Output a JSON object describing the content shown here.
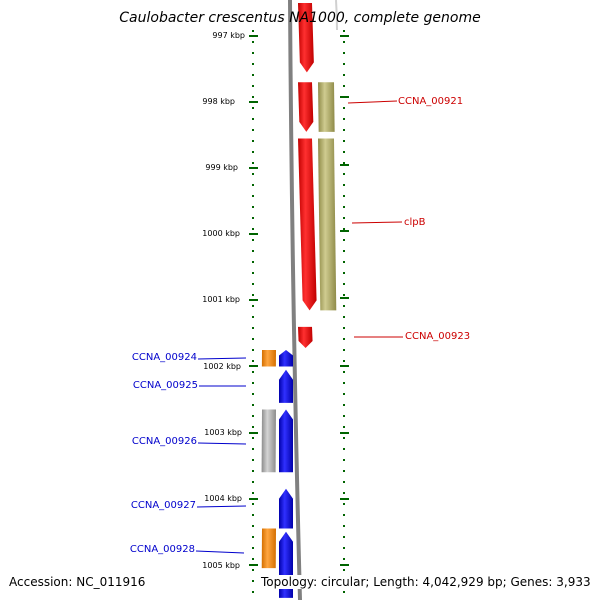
{
  "title": "Caulobacter crescentus NA1000, complete genome",
  "footer": {
    "accession": "Accession: NC_011916",
    "topology": "Topology: circular; Length: 4,042,929 bp; Genes: 3,933"
  },
  "colors": {
    "backbone": "#808080",
    "ticks": "#006400",
    "label_right": "#cc0000",
    "label_left": "#0000cc",
    "red": "#ff0000",
    "olive": "#b8b46c",
    "blue": "#0000ff",
    "orange": "#ff8c00",
    "grey": "#b8b8b8"
  },
  "kbp_ticks": [
    "997 kbp",
    "998 kbp",
    "999 kbp",
    "1000 kbp",
    "1001 kbp",
    "1002 kbp",
    "1003 kbp",
    "1004 kbp",
    "1005 kbp"
  ],
  "gene_labels_right": [
    "CCNA_00921",
    "clpB",
    "CCNA_00923"
  ],
  "gene_labels_left": [
    "CCNA_00924",
    "CCNA_00925",
    "CCNA_00926",
    "CCNA_00927",
    "CCNA_00928"
  ],
  "features": [
    {
      "track": "inner_plus",
      "color": "red",
      "start_kbp": 996.5,
      "end_kbp": 997.55,
      "arrow": true
    },
    {
      "track": "inner_plus",
      "color": "red",
      "start_kbp": 997.7,
      "end_kbp": 998.45,
      "arrow": true
    },
    {
      "track": "inner_plus",
      "color": "red",
      "start_kbp": 998.55,
      "end_kbp": 1001.15,
      "arrow": true
    },
    {
      "track": "inner_plus",
      "color": "red",
      "start_kbp": 1001.4,
      "end_kbp": 1001.72,
      "arrow": true
    },
    {
      "track": "outer_plus",
      "color": "olive",
      "start_kbp": 997.7,
      "end_kbp": 998.45,
      "arrow": false
    },
    {
      "track": "outer_plus",
      "color": "olive",
      "start_kbp": 998.55,
      "end_kbp": 1001.15,
      "arrow": false
    },
    {
      "track": "inner_minus",
      "color": "blue",
      "start_kbp": 1001.75,
      "end_kbp": 1002.0,
      "arrow": true
    },
    {
      "track": "inner_minus",
      "color": "blue",
      "start_kbp": 1002.05,
      "end_kbp": 1002.55,
      "arrow": true
    },
    {
      "track": "inner_minus",
      "color": "blue",
      "start_kbp": 1002.65,
      "end_kbp": 1003.6,
      "arrow": true
    },
    {
      "track": "inner_minus",
      "color": "blue",
      "start_kbp": 1003.85,
      "end_kbp": 1004.45,
      "arrow": true
    },
    {
      "track": "inner_minus",
      "color": "blue",
      "start_kbp": 1004.5,
      "end_kbp": 1005.5,
      "arrow": true
    },
    {
      "track": "outer_minus",
      "color": "orange",
      "start_kbp": 1001.75,
      "end_kbp": 1002.0,
      "arrow": false
    },
    {
      "track": "outer_minus",
      "color": "grey",
      "start_kbp": 1002.65,
      "end_kbp": 1003.6,
      "arrow": false
    },
    {
      "track": "outer_minus",
      "color": "orange",
      "start_kbp": 1004.45,
      "end_kbp": 1005.05,
      "arrow": false
    }
  ]
}
